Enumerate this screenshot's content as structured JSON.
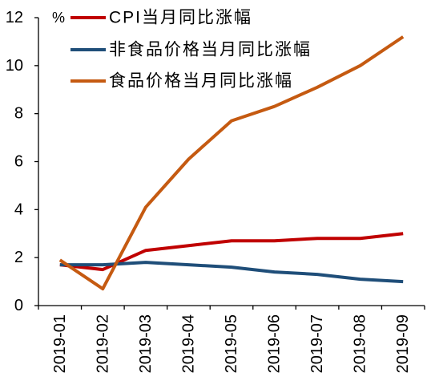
{
  "chart_data": {
    "type": "line",
    "categories": [
      "2019-01",
      "2019-02",
      "2019-03",
      "2019-04",
      "2019-05",
      "2019-06",
      "2019-07",
      "2019-08",
      "2019-09"
    ],
    "series": [
      {
        "name": "CPI当月同比涨幅",
        "color": "#C00000",
        "values": [
          1.7,
          1.5,
          2.3,
          2.5,
          2.7,
          2.7,
          2.8,
          2.8,
          3.0
        ]
      },
      {
        "name": "非食品价格当月同比涨幅",
        "color": "#1F4E79",
        "values": [
          1.7,
          1.7,
          1.8,
          1.7,
          1.6,
          1.4,
          1.3,
          1.1,
          1.0
        ]
      },
      {
        "name": "食品价格当月同比涨幅",
        "color": "#C55A11",
        "values": [
          1.9,
          0.7,
          4.1,
          6.1,
          7.7,
          8.3,
          9.1,
          10.0,
          11.2
        ]
      }
    ],
    "ylabel": "%",
    "ylim": [
      0,
      12
    ],
    "yticks": [
      0,
      2,
      4,
      6,
      8,
      10,
      12
    ],
    "grid": false,
    "legend": "top-left"
  }
}
